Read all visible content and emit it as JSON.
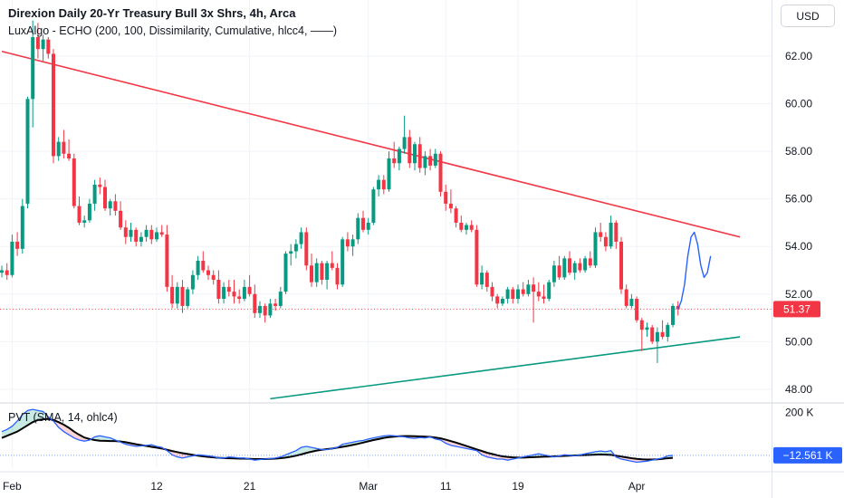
{
  "header": {
    "title": "Direxion Daily 20-Yr Treasury Bull 3x Shrs, 4h, Arca",
    "indicator": "LuxAlgo - ECHO (200, 100, Dissimilarity, Cumulative, hlcc4, ——)",
    "currency": "USD"
  },
  "pvt_pane": {
    "label": "PVT (SMA, 14, ohlc4)",
    "top_tick": "200 K",
    "current_value_label": "−12.561 K"
  },
  "colors": {
    "up": "#089981",
    "down": "#f23645",
    "resistance_line": "#f23645",
    "support_line": "#089981",
    "echo_forecast": "#2962ff",
    "pvt_line": "#2962ff",
    "pvt_sma": "#000000"
  },
  "chart_data": {
    "type": "candlestick",
    "current_price": 51.37,
    "current_price_label": "51.37",
    "y_ticks": [
      "62.00",
      "60.00",
      "58.00",
      "56.00",
      "54.00",
      "52.00",
      "50.00",
      "48.00"
    ],
    "ylim": [
      47.5,
      63.6
    ],
    "x_ticks": [
      "Feb",
      "12",
      "21",
      "Mar",
      "11",
      "19",
      "Apr"
    ],
    "candles": [
      [
        52.9,
        53.2,
        52.7,
        53.0
      ],
      [
        53.0,
        53.3,
        52.6,
        52.8
      ],
      [
        52.8,
        54.5,
        52.7,
        54.2
      ],
      [
        54.2,
        54.6,
        53.6,
        53.9
      ],
      [
        53.9,
        56.0,
        53.7,
        55.7
      ],
      [
        55.8,
        60.3,
        55.6,
        60.2
      ],
      [
        60.2,
        63.5,
        59.0,
        62.8
      ],
      [
        62.8,
        63.4,
        61.9,
        62.3
      ],
      [
        62.3,
        62.9,
        61.8,
        62.7
      ],
      [
        62.7,
        62.8,
        61.9,
        62.1
      ],
      [
        62.1,
        62.3,
        57.5,
        57.8
      ],
      [
        57.8,
        58.6,
        57.6,
        58.4
      ],
      [
        58.4,
        58.9,
        57.7,
        57.9
      ],
      [
        57.9,
        58.5,
        57.6,
        57.7
      ],
      [
        57.7,
        57.9,
        55.6,
        55.7
      ],
      [
        55.7,
        56.1,
        54.9,
        55.0
      ],
      [
        55.0,
        55.3,
        54.8,
        55.1
      ],
      [
        55.1,
        56.0,
        55.0,
        55.8
      ],
      [
        55.8,
        56.8,
        55.5,
        56.6
      ],
      [
        56.6,
        56.9,
        56.2,
        56.5
      ],
      [
        56.5,
        56.8,
        55.5,
        55.6
      ],
      [
        55.6,
        56.0,
        55.3,
        55.9
      ],
      [
        55.9,
        56.2,
        55.3,
        55.5
      ],
      [
        55.5,
        55.9,
        54.7,
        54.8
      ],
      [
        54.8,
        55.1,
        54.1,
        54.4
      ],
      [
        54.4,
        55.0,
        54.2,
        54.7
      ],
      [
        54.7,
        54.8,
        54.0,
        54.2
      ],
      [
        54.2,
        54.6,
        54.0,
        54.4
      ],
      [
        54.4,
        54.9,
        54.2,
        54.7
      ],
      [
        54.7,
        54.9,
        54.1,
        54.3
      ],
      [
        54.3,
        54.8,
        54.2,
        54.6
      ],
      [
        54.6,
        54.9,
        54.4,
        54.5
      ],
      [
        54.5,
        54.9,
        52.1,
        52.3
      ],
      [
        52.3,
        52.8,
        51.4,
        51.6
      ],
      [
        51.6,
        52.5,
        51.4,
        52.3
      ],
      [
        52.3,
        52.6,
        51.2,
        51.5
      ],
      [
        51.5,
        52.3,
        51.4,
        52.2
      ],
      [
        52.2,
        53.0,
        52.0,
        52.8
      ],
      [
        52.8,
        53.6,
        52.6,
        53.4
      ],
      [
        53.4,
        53.8,
        52.9,
        53.0
      ],
      [
        53.0,
        53.2,
        52.6,
        52.8
      ],
      [
        52.8,
        53.0,
        52.4,
        52.6
      ],
      [
        52.6,
        53.0,
        51.6,
        51.8
      ],
      [
        51.8,
        52.5,
        51.6,
        52.3
      ],
      [
        52.3,
        52.6,
        51.9,
        52.1
      ],
      [
        52.1,
        52.6,
        51.6,
        51.9
      ],
      [
        51.9,
        52.2,
        51.6,
        51.8
      ],
      [
        51.8,
        52.6,
        51.7,
        52.3
      ],
      [
        52.3,
        52.8,
        51.9,
        52.0
      ],
      [
        52.0,
        52.4,
        51.0,
        51.2
      ],
      [
        51.2,
        51.7,
        51.0,
        51.5
      ],
      [
        51.5,
        51.6,
        50.8,
        51.1
      ],
      [
        51.1,
        51.8,
        51.0,
        51.6
      ],
      [
        51.6,
        51.8,
        51.3,
        51.5
      ],
      [
        51.5,
        52.3,
        51.4,
        52.1
      ],
      [
        52.1,
        53.8,
        52.0,
        53.7
      ],
      [
        53.7,
        54.1,
        53.2,
        53.8
      ],
      [
        53.8,
        54.3,
        53.5,
        54.1
      ],
      [
        54.1,
        54.8,
        53.9,
        54.6
      ],
      [
        54.6,
        54.8,
        53.0,
        53.2
      ],
      [
        53.2,
        53.7,
        52.3,
        52.5
      ],
      [
        52.5,
        53.5,
        52.3,
        53.3
      ],
      [
        53.3,
        53.4,
        52.4,
        52.6
      ],
      [
        52.6,
        53.4,
        52.2,
        53.3
      ],
      [
        53.3,
        53.8,
        53.0,
        53.1
      ],
      [
        53.1,
        53.3,
        52.2,
        52.4
      ],
      [
        52.4,
        54.4,
        52.3,
        54.3
      ],
      [
        54.3,
        54.6,
        53.8,
        54.0
      ],
      [
        54.0,
        54.5,
        53.6,
        54.3
      ],
      [
        54.3,
        55.4,
        54.1,
        55.2
      ],
      [
        55.2,
        55.5,
        54.6,
        54.7
      ],
      [
        54.7,
        55.2,
        54.5,
        55.0
      ],
      [
        55.0,
        56.5,
        54.9,
        56.4
      ],
      [
        56.4,
        57.0,
        56.1,
        56.8
      ],
      [
        56.8,
        57.0,
        56.2,
        56.4
      ],
      [
        56.4,
        58.0,
        56.3,
        57.7
      ],
      [
        57.7,
        58.4,
        57.3,
        57.5
      ],
      [
        57.5,
        58.2,
        57.2,
        58.1
      ],
      [
        58.1,
        59.5,
        57.9,
        58.6
      ],
      [
        58.6,
        58.9,
        57.3,
        57.5
      ],
      [
        57.5,
        58.4,
        57.2,
        58.3
      ],
      [
        58.3,
        58.6,
        57.1,
        57.3
      ],
      [
        57.3,
        58.0,
        57.0,
        57.8
      ],
      [
        57.8,
        58.1,
        57.2,
        57.4
      ],
      [
        57.4,
        58.1,
        57.3,
        57.9
      ],
      [
        57.9,
        58.0,
        56.1,
        56.3
      ],
      [
        56.3,
        56.6,
        55.5,
        55.8
      ],
      [
        55.8,
        56.4,
        55.4,
        55.6
      ],
      [
        55.6,
        55.7,
        54.8,
        55.0
      ],
      [
        55.0,
        55.3,
        54.6,
        54.7
      ],
      [
        54.7,
        55.0,
        54.5,
        54.9
      ],
      [
        54.9,
        55.1,
        54.6,
        54.7
      ],
      [
        54.7,
        54.9,
        52.3,
        52.4
      ],
      [
        52.4,
        53.2,
        52.2,
        52.9
      ],
      [
        52.9,
        53.0,
        52.1,
        52.3
      ],
      [
        52.3,
        52.5,
        51.7,
        51.9
      ],
      [
        51.9,
        52.0,
        51.4,
        51.6
      ],
      [
        51.6,
        51.9,
        51.5,
        51.8
      ],
      [
        51.8,
        52.3,
        51.6,
        52.2
      ],
      [
        52.2,
        52.3,
        51.6,
        51.8
      ],
      [
        51.8,
        52.4,
        51.6,
        52.2
      ],
      [
        52.2,
        52.5,
        51.9,
        52.0
      ],
      [
        52.0,
        52.6,
        51.9,
        52.4
      ],
      [
        52.4,
        52.7,
        50.8,
        52.1
      ],
      [
        52.1,
        52.5,
        51.7,
        51.9
      ],
      [
        51.9,
        52.4,
        51.6,
        51.8
      ],
      [
        51.8,
        52.6,
        51.7,
        52.5
      ],
      [
        52.5,
        53.4,
        52.3,
        53.2
      ],
      [
        53.2,
        53.6,
        52.6,
        52.7
      ],
      [
        52.7,
        53.6,
        52.6,
        53.5
      ],
      [
        53.5,
        53.8,
        52.8,
        52.9
      ],
      [
        52.9,
        53.4,
        52.6,
        53.3
      ],
      [
        53.3,
        53.5,
        52.9,
        53.0
      ],
      [
        53.0,
        53.6,
        52.9,
        53.5
      ],
      [
        53.5,
        53.8,
        53.1,
        53.2
      ],
      [
        53.2,
        54.8,
        53.1,
        54.6
      ],
      [
        54.6,
        55.0,
        54.2,
        54.4
      ],
      [
        54.4,
        54.6,
        53.8,
        54.0
      ],
      [
        54.0,
        55.3,
        53.9,
        55.0
      ],
      [
        55.0,
        55.1,
        53.9,
        54.2
      ],
      [
        54.2,
        54.4,
        52.0,
        52.2
      ],
      [
        52.2,
        52.4,
        51.4,
        51.5
      ],
      [
        51.5,
        52.0,
        51.4,
        51.8
      ],
      [
        51.8,
        51.9,
        50.8,
        50.9
      ],
      [
        50.9,
        51.0,
        49.6,
        50.5
      ],
      [
        50.5,
        50.8,
        50.2,
        50.6
      ],
      [
        50.6,
        50.7,
        49.9,
        50.0
      ],
      [
        50.0,
        50.6,
        49.1,
        50.4
      ],
      [
        50.4,
        50.9,
        50.1,
        50.2
      ],
      [
        50.2,
        50.8,
        50.0,
        50.7
      ],
      [
        50.7,
        51.6,
        50.6,
        51.5
      ],
      [
        51.5,
        51.7,
        51.1,
        51.37
      ]
    ],
    "resistance_line": [
      [
        0,
        62.2
      ],
      [
        143,
        54.4
      ]
    ],
    "support_line": [
      [
        52,
        47.6
      ],
      [
        143,
        50.2
      ]
    ],
    "echo_forecast": [
      51.37,
      51.7,
      52.4,
      53.6,
      54.4,
      54.6,
      54.1,
      53.2,
      52.7,
      52.9,
      53.6
    ],
    "pvt_range": [
      -60,
      210
    ],
    "pvt": [
      100,
      110,
      125,
      150,
      180,
      200,
      205,
      200,
      195,
      170,
      150,
      120,
      100,
      85,
      70,
      60,
      55,
      60,
      75,
      80,
      75,
      70,
      60,
      50,
      40,
      35,
      30,
      32,
      35,
      38,
      30,
      25,
      10,
      -10,
      -20,
      -25,
      -20,
      -15,
      -10,
      -12,
      -15,
      -18,
      -25,
      -25,
      -20,
      -22,
      -25,
      -25,
      -30,
      -35,
      -32,
      -30,
      -28,
      -25,
      -20,
      -10,
      0,
      10,
      25,
      30,
      25,
      20,
      15,
      15,
      20,
      25,
      40,
      45,
      50,
      55,
      58,
      65,
      70,
      75,
      80,
      82,
      80,
      78,
      75,
      70,
      68,
      72,
      70,
      75,
      65,
      60,
      45,
      35,
      30,
      25,
      20,
      15,
      10,
      -10,
      -20,
      -25,
      -30,
      -30,
      -35,
      -30,
      -25,
      -20,
      -15,
      -10,
      -5,
      -10,
      -15,
      -20,
      -15,
      -10,
      -12,
      -15,
      -10,
      -5,
      0,
      5,
      8,
      5,
      10,
      -20,
      -30,
      -35,
      -40,
      -45,
      -42,
      -40,
      -35,
      -30,
      -25,
      -15,
      -12.561
    ],
    "pvt_sma": [
      70,
      80,
      90,
      100,
      115,
      130,
      145,
      155,
      158,
      160,
      155,
      145,
      133,
      118,
      100,
      85,
      72,
      65,
      60,
      57,
      56,
      55,
      55,
      53,
      50,
      45,
      40,
      36,
      32,
      28,
      24,
      20,
      14,
      8,
      3,
      -2,
      -6,
      -10,
      -14,
      -17,
      -20,
      -22,
      -24,
      -25,
      -26,
      -27,
      -28,
      -28,
      -29,
      -30,
      -30,
      -30,
      -29,
      -28,
      -26,
      -23,
      -19,
      -14,
      -8,
      -1,
      5,
      10,
      14,
      17,
      20,
      24,
      28,
      32,
      37,
      42,
      48,
      54,
      60,
      65,
      70,
      74,
      76,
      78,
      79,
      79,
      78,
      77,
      76,
      75,
      72,
      68,
      62,
      55,
      48,
      40,
      32,
      24,
      16,
      8,
      0,
      -6,
      -12,
      -17,
      -20,
      -22,
      -23,
      -23,
      -22,
      -21,
      -20,
      -19,
      -18,
      -17,
      -16,
      -15,
      -14,
      -13,
      -12,
      -11,
      -10,
      -9,
      -8,
      -9,
      -10,
      -14,
      -18,
      -22,
      -26,
      -29,
      -31,
      -32,
      -32,
      -31,
      -29,
      -26,
      -24
    ]
  }
}
